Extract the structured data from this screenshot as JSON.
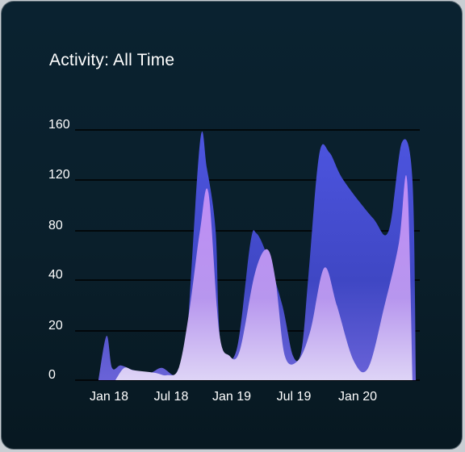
{
  "card": {
    "title": "Activity: All Time"
  },
  "colors": {
    "card_background": "#0a1f2b",
    "gridline": "#000000",
    "text": "#ffffff",
    "series_back": "#4a52d6",
    "series_front": "#b38cf0"
  },
  "chart_data": {
    "type": "area",
    "title": "Activity: All Time",
    "xlabel": "",
    "ylabel": "",
    "x_ticks": [
      "Jan 18",
      "Jul 18",
      "Jan 19",
      "Jul 19",
      "Jan 20"
    ],
    "y_ticks": [
      "0",
      "20",
      "40",
      "80",
      "120",
      "160"
    ],
    "grid": true,
    "legend": "none",
    "series": [
      {
        "values": [
          [
            "2017-12-01",
            0
          ],
          [
            "2017-12-25",
            18
          ],
          [
            "2018-01-10",
            5
          ],
          [
            "2018-02-05",
            6
          ],
          [
            "2018-03-15",
            4
          ],
          [
            "2018-05-01",
            3
          ],
          [
            "2018-06-05",
            5
          ],
          [
            "2018-07-10",
            2
          ],
          [
            "2018-07-25",
            5
          ],
          [
            "2018-08-15",
            12
          ],
          [
            "2018-09-25",
            150
          ],
          [
            "2018-10-15",
            130
          ],
          [
            "2018-11-10",
            80
          ],
          [
            "2018-11-25",
            15
          ],
          [
            "2019-01-10",
            12
          ],
          [
            "2019-02-20",
            70
          ],
          [
            "2019-03-10",
            78
          ],
          [
            "2019-04-10",
            60
          ],
          [
            "2019-05-25",
            30
          ],
          [
            "2019-06-25",
            10
          ],
          [
            "2019-07-20",
            12
          ],
          [
            "2019-08-10",
            45
          ],
          [
            "2019-09-10",
            140
          ],
          [
            "2019-10-10",
            142
          ],
          [
            "2019-11-20",
            120
          ],
          [
            "2020-02-15",
            90
          ],
          [
            "2020-04-01",
            80
          ],
          [
            "2020-05-10",
            150
          ],
          [
            "2020-06-10",
            120
          ],
          [
            "2020-06-20",
            0
          ]
        ]
      },
      {
        "values": [
          [
            "2018-01-20",
            0
          ],
          [
            "2018-02-15",
            5
          ],
          [
            "2018-03-15",
            4
          ],
          [
            "2018-05-15",
            3
          ],
          [
            "2018-06-20",
            2
          ],
          [
            "2018-07-25",
            5
          ],
          [
            "2018-08-25",
            28
          ],
          [
            "2018-09-25",
            80
          ],
          [
            "2018-10-20",
            110
          ],
          [
            "2018-11-20",
            20
          ],
          [
            "2018-12-20",
            10
          ],
          [
            "2019-01-20",
            12
          ],
          [
            "2019-03-05",
            45
          ],
          [
            "2019-04-10",
            65
          ],
          [
            "2019-05-05",
            40
          ],
          [
            "2019-06-01",
            10
          ],
          [
            "2019-07-10",
            8
          ],
          [
            "2019-08-15",
            20
          ],
          [
            "2019-09-25",
            50
          ],
          [
            "2019-11-01",
            30
          ],
          [
            "2019-12-20",
            8
          ],
          [
            "2020-02-01",
            5
          ],
          [
            "2020-03-20",
            30
          ],
          [
            "2020-05-01",
            70
          ],
          [
            "2020-05-25",
            120
          ],
          [
            "2020-06-10",
            0
          ]
        ]
      }
    ]
  }
}
